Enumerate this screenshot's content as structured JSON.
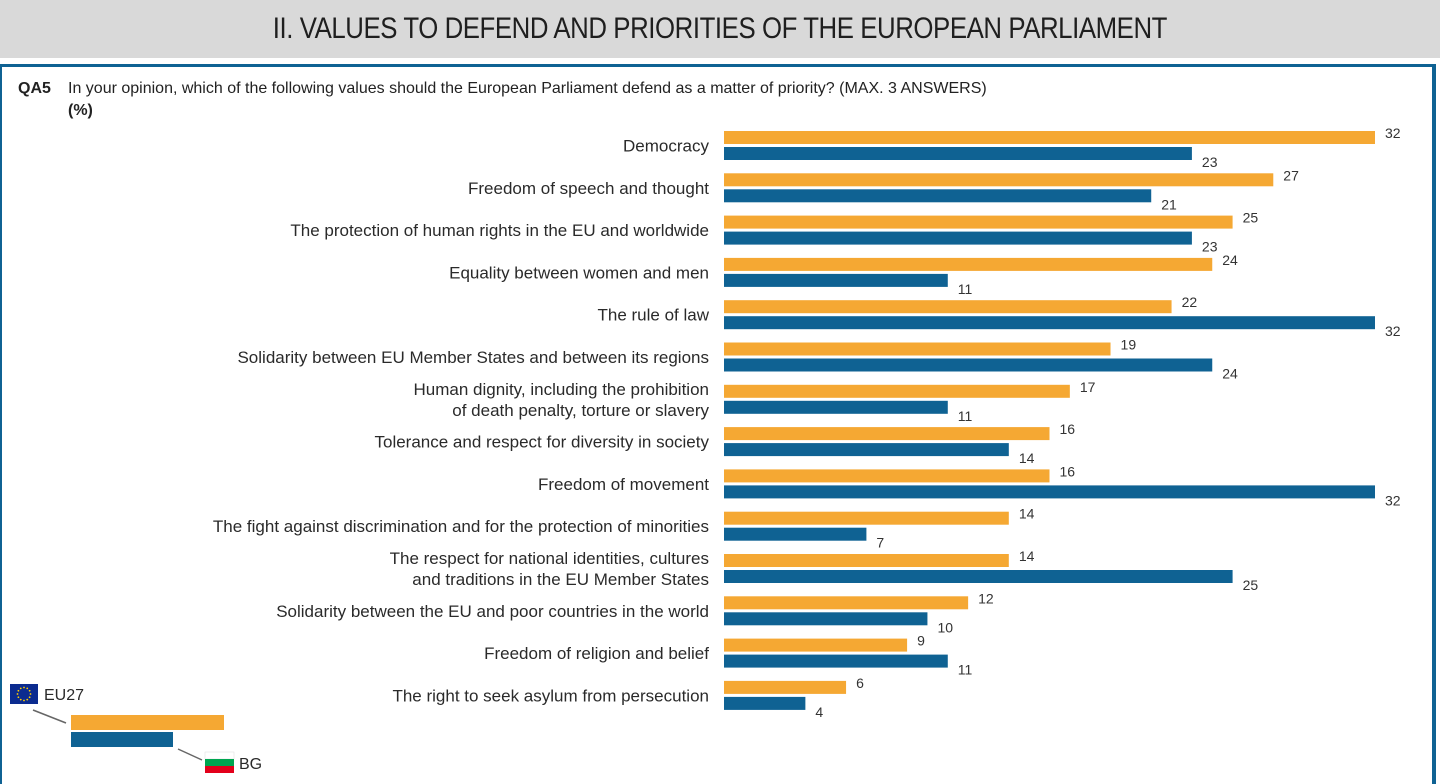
{
  "header": {
    "title": "II. VALUES TO DEFEND AND PRIORITIES OF THE EUROPEAN PARLIAMENT"
  },
  "question": {
    "id": "QA5",
    "text": "In your opinion, which of the following values should the European Parliament defend as a matter of priority? (MAX. 3 ANSWERS)",
    "unit": "(%)"
  },
  "colors": {
    "eu27": "#f5a833",
    "bg": "#0f6293",
    "frame": "#0f6293",
    "header_bg": "#d9d9d9"
  },
  "legend": {
    "eu27_label": "EU27",
    "bg_label": "BG",
    "eu27_icon": "eu-flag-icon",
    "bg_icon": "bulgaria-flag-icon"
  },
  "chart_data": {
    "type": "bar",
    "orientation": "horizontal",
    "title": "QA5 In your opinion, which of the following values should the European Parliament defend as a matter of priority? (MAX. 3 ANSWERS) (%)",
    "xlabel": "",
    "ylabel": "",
    "xlim": [
      0,
      32
    ],
    "grid": false,
    "legend_position": "bottom-left",
    "categories": [
      [
        "Democracy"
      ],
      [
        "Freedom of speech and thought"
      ],
      [
        "The protection of human rights in the EU and worldwide"
      ],
      [
        "Equality between women and men"
      ],
      [
        "The rule of law"
      ],
      [
        "Solidarity between EU Member States and between its regions"
      ],
      [
        "Human dignity, including the prohibition",
        "of death penalty, torture or slavery"
      ],
      [
        "Tolerance and respect for diversity in society"
      ],
      [
        "Freedom of movement"
      ],
      [
        "The fight against discrimination and for the protection of minorities"
      ],
      [
        "The respect for national identities, cultures",
        "and traditions in the EU Member States"
      ],
      [
        "Solidarity between the EU and poor countries in the world"
      ],
      [
        "Freedom of religion and belief"
      ],
      [
        "The right to seek asylum from persecution"
      ]
    ],
    "series": [
      {
        "name": "EU27",
        "color": "#f5a833",
        "values": [
          32,
          27,
          25,
          24,
          22,
          19,
          17,
          16,
          16,
          14,
          14,
          12,
          9,
          6
        ]
      },
      {
        "name": "BG",
        "color": "#0f6293",
        "values": [
          23,
          21,
          23,
          11,
          32,
          24,
          11,
          14,
          32,
          7,
          25,
          10,
          11,
          4
        ]
      }
    ]
  }
}
